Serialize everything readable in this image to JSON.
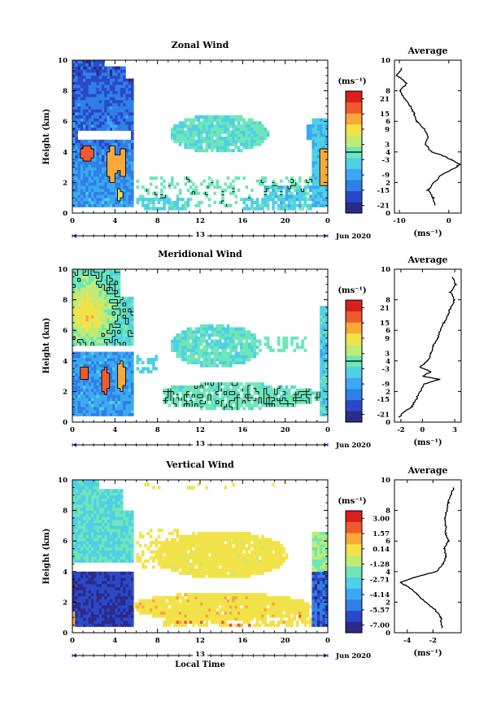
{
  "colors": {
    "scale": [
      "#2b2b88",
      "#2a48c8",
      "#2f7fe6",
      "#3aa9f2",
      "#4fd0e6",
      "#6fe6b8",
      "#c0ec74",
      "#f2e24a",
      "#f8a93a",
      "#f05a2c",
      "#d91f1f"
    ],
    "axis": "#000000",
    "time_axis_marker": "#1b1b8c"
  },
  "chart_data": [
    {
      "type": "heatmap",
      "title": "Zonal Wind",
      "ylabel": "Height (km)",
      "xlabel": "",
      "date_label": "Jun 2020",
      "day_label": "13",
      "xlim": [
        0,
        24
      ],
      "ylim": [
        0,
        10
      ],
      "xticks": [
        "0",
        "4",
        "8",
        "12",
        "16",
        "20",
        "0"
      ],
      "yticks": [
        "0",
        "2",
        "4",
        "6",
        "8",
        "10"
      ],
      "colorbar": {
        "unit_label": "(ms⁻¹)",
        "ticks": [
          "21",
          "15",
          "9",
          "3",
          "-3",
          "-9",
          "-15",
          "-21"
        ],
        "range": [
          -24,
          24
        ],
        "contour_value": 0
      },
      "average": {
        "title": "Average",
        "unit_label": "(ms⁻¹)",
        "xticks": [
          "-10",
          "0"
        ],
        "xlim": [
          -11,
          2.5
        ],
        "heights": [
          0.5,
          1.0,
          1.5,
          2.0,
          2.5,
          3.0,
          3.2,
          3.5,
          3.8,
          4.0,
          4.5,
          5.0,
          5.5,
          6.0,
          6.5,
          7.0,
          7.5,
          8.0,
          8.5,
          9.0,
          9.5
        ],
        "values": [
          -2.8,
          -3.2,
          -4.2,
          -3.0,
          -1.5,
          1.5,
          2.2,
          0.5,
          -1.5,
          -3.5,
          -4.8,
          -4.2,
          -5.0,
          -6.5,
          -7.0,
          -7.8,
          -9.0,
          -9.8,
          -8.5,
          -10.5,
          -9.5
        ]
      }
    },
    {
      "type": "heatmap",
      "title": "Meridional Wind",
      "ylabel": "Height (km)",
      "xlabel": "",
      "date_label": "Jun 2020",
      "day_label": "13",
      "xlim": [
        0,
        24
      ],
      "ylim": [
        0,
        10
      ],
      "xticks": [
        "0",
        "4",
        "8",
        "12",
        "16",
        "20",
        "0"
      ],
      "yticks": [
        "0",
        "2",
        "4",
        "6",
        "8",
        "10"
      ],
      "colorbar": {
        "unit_label": "(ms⁻¹)",
        "ticks": [
          "21",
          "15",
          "9",
          "3",
          "-3",
          "-9",
          "-15",
          "-21"
        ],
        "range": [
          -24,
          24
        ],
        "contour_value": 0
      },
      "average": {
        "title": "Average",
        "unit_label": "(ms⁻¹)",
        "xticks": [
          "-2",
          "0",
          "3"
        ],
        "xlim": [
          -2.6,
          3.6
        ],
        "heights": [
          0.3,
          0.6,
          1.0,
          1.5,
          2.0,
          2.5,
          2.8,
          3.0,
          3.3,
          3.6,
          4.0,
          4.5,
          5.0,
          5.5,
          6.0,
          6.5,
          7.0,
          7.5,
          8.0,
          8.5,
          9.0,
          9.5
        ],
        "values": [
          -2.2,
          -1.8,
          -1.0,
          -0.6,
          -0.2,
          0.2,
          1.6,
          0.0,
          0.8,
          -0.2,
          0.5,
          0.8,
          1.0,
          1.4,
          1.7,
          2.0,
          2.4,
          2.6,
          3.0,
          2.6,
          3.1,
          2.8
        ]
      }
    },
    {
      "type": "heatmap",
      "title": "Vertical Wind",
      "ylabel": "Height (km)",
      "xlabel": "Local Time",
      "date_label": "Jun 2020",
      "day_label": "13",
      "xlim": [
        0,
        24
      ],
      "ylim": [
        0,
        10
      ],
      "xticks": [
        "0",
        "4",
        "8",
        "12",
        "16",
        "20",
        "0"
      ],
      "yticks": [
        "0",
        "2",
        "4",
        "6",
        "8",
        "10"
      ],
      "colorbar": {
        "unit_label": "(ms⁻¹)",
        "ticks": [
          "3.00",
          "1.57",
          "0.14",
          "-1.28",
          "-2.71",
          "-4.14",
          "-5.57",
          "-7.00"
        ],
        "range": [
          -7.7,
          3.7
        ],
        "contour_value": null
      },
      "average": {
        "title": "Average",
        "unit_label": "(ms⁻¹)",
        "xticks": [
          "-4",
          "-2"
        ],
        "xlim": [
          -5.0,
          0.2
        ],
        "heights": [
          0.3,
          1.0,
          1.5,
          2.0,
          2.5,
          3.0,
          3.3,
          3.6,
          4.0,
          4.5,
          5.0,
          5.5,
          6.0,
          6.5,
          7.0,
          7.5,
          8.0,
          8.5,
          9.0,
          9.5
        ],
        "values": [
          -1.3,
          -1.4,
          -1.8,
          -2.6,
          -3.2,
          -3.9,
          -4.6,
          -3.5,
          -1.7,
          -1.2,
          -1.0,
          -1.1,
          -0.8,
          -1.0,
          -1.0,
          -1.1,
          -0.9,
          -0.8,
          -0.6,
          -0.4
        ]
      }
    }
  ]
}
